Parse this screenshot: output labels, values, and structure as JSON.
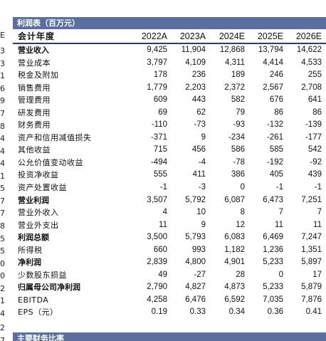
{
  "title": "利润表（百万元）",
  "header": {
    "label": "会计年度",
    "years": [
      "2022A",
      "2023A",
      "2024E",
      "2025E",
      "2026E"
    ]
  },
  "rows": [
    {
      "label": "营业收入",
      "bold": true,
      "values": [
        "9,425",
        "11,904",
        "12,868",
        "13,794",
        "14,622"
      ]
    },
    {
      "label": "营业成本",
      "bold": false,
      "values": [
        "3,797",
        "4,109",
        "4,311",
        "4,414",
        "4,533"
      ]
    },
    {
      "label": "税金及附加",
      "bold": false,
      "values": [
        "178",
        "236",
        "189",
        "246",
        "255"
      ]
    },
    {
      "label": "销售费用",
      "bold": false,
      "values": [
        "1,779",
        "2,203",
        "2,372",
        "2,567",
        "2,708"
      ]
    },
    {
      "label": "管理费用",
      "bold": false,
      "values": [
        "609",
        "443",
        "582",
        "676",
        "641"
      ]
    },
    {
      "label": "研发费用",
      "bold": false,
      "values": [
        "69",
        "62",
        "79",
        "86",
        "86"
      ]
    },
    {
      "label": "财务费用",
      "bold": false,
      "values": [
        "-110",
        "-73",
        "-93",
        "-132",
        "-139"
      ]
    },
    {
      "label": "资产和信用减值损失",
      "bold": false,
      "values": [
        "-371",
        "9",
        "-234",
        "-261",
        "-177"
      ]
    },
    {
      "label": "其他收益",
      "bold": false,
      "values": [
        "715",
        "456",
        "586",
        "585",
        "542"
      ]
    },
    {
      "label": "公允价值变动收益",
      "bold": false,
      "values": [
        "-494",
        "-4",
        "-78",
        "-192",
        "-92"
      ]
    },
    {
      "label": "投资净收益",
      "bold": false,
      "values": [
        "555",
        "411",
        "386",
        "405",
        "439"
      ]
    },
    {
      "label": "资产处置收益",
      "bold": false,
      "values": [
        "-1",
        "-3",
        "0",
        "-1",
        "-1"
      ]
    },
    {
      "label": "营业利润",
      "bold": true,
      "values": [
        "3,507",
        "5,792",
        "6,087",
        "6,473",
        "7,251"
      ]
    },
    {
      "label": "营业外收入",
      "bold": false,
      "values": [
        "4",
        "10",
        "8",
        "7",
        "7"
      ]
    },
    {
      "label": "营业外支出",
      "bold": false,
      "values": [
        "11",
        "9",
        "12",
        "11",
        "11"
      ]
    },
    {
      "label": "利润总额",
      "bold": true,
      "values": [
        "3,500",
        "5,793",
        "6,083",
        "6,469",
        "7,247"
      ]
    },
    {
      "label": "所得税",
      "bold": false,
      "values": [
        "660",
        "993",
        "1,182",
        "1,236",
        "1,351"
      ]
    },
    {
      "label": "净利润",
      "bold": true,
      "values": [
        "2,839",
        "4,800",
        "4,901",
        "5,233",
        "5,897"
      ]
    },
    {
      "label": "少数股东损益",
      "bold": false,
      "values": [
        "49",
        "-27",
        "28",
        "0",
        "17"
      ]
    },
    {
      "label": "归属母公司净利润",
      "bold": true,
      "values": [
        "2,790",
        "4,827",
        "4,873",
        "5,233",
        "5,879"
      ]
    },
    {
      "label": "EBITDA",
      "bold": false,
      "values": [
        "4,258",
        "6,476",
        "6,592",
        "7,035",
        "7,876"
      ]
    },
    {
      "label": "EPS（元）",
      "bold": false,
      "values": [
        "0.19",
        "0.33",
        "0.34",
        "0.36",
        "0.41"
      ]
    }
  ],
  "left_edge_chars": [
    "E",
    "3",
    "3",
    "1",
    "6",
    "9",
    "7",
    "8",
    "4",
    "4",
    "4",
    "1",
    "5",
    "7",
    "7",
    "8",
    "5",
    "5",
    "0",
    "0",
    "2",
    "1",
    "4",
    "2",
    "7"
  ],
  "bottom_title": "主要财务比率"
}
